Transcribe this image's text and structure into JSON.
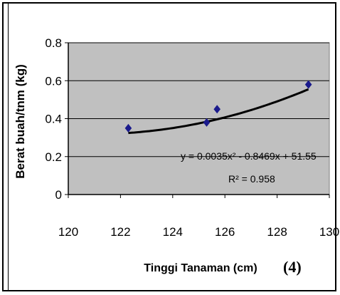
{
  "panel_label": "(4)",
  "colors": {
    "plot_bg": "#c0c0c0",
    "marker": "#1a1a8c",
    "trend": "#000000"
  },
  "chart_data": {
    "type": "scatter",
    "title": "",
    "xlabel": "Tinggi Tanaman (cm)",
    "ylabel": "Berat buah/tnm (kg)",
    "xlim": [
      120,
      130
    ],
    "ylim": [
      0,
      0.8
    ],
    "x_ticks": [
      120,
      122,
      124,
      126,
      128,
      130
    ],
    "y_ticks": [
      0,
      0.2,
      0.4,
      0.6,
      0.8
    ],
    "x_tick_labels": [
      "120",
      "122",
      "124",
      "126",
      "128",
      "130"
    ],
    "y_tick_labels": [
      "0",
      "0.2",
      "0.4",
      "0.6",
      "0.8"
    ],
    "grid": "horizontal",
    "points": [
      {
        "x": 122.3,
        "y": 0.35
      },
      {
        "x": 125.3,
        "y": 0.38
      },
      {
        "x": 125.7,
        "y": 0.45
      },
      {
        "x": 129.2,
        "y": 0.58
      }
    ],
    "trendline": {
      "type": "polynomial",
      "coefficients": [
        0.0035,
        -0.8469,
        51.55
      ],
      "x_range": [
        122.3,
        129.2
      ]
    },
    "equation_text": "y = 0.0035x² - 0.8469x + 51.55",
    "r2_text": "R² = 0.958"
  }
}
